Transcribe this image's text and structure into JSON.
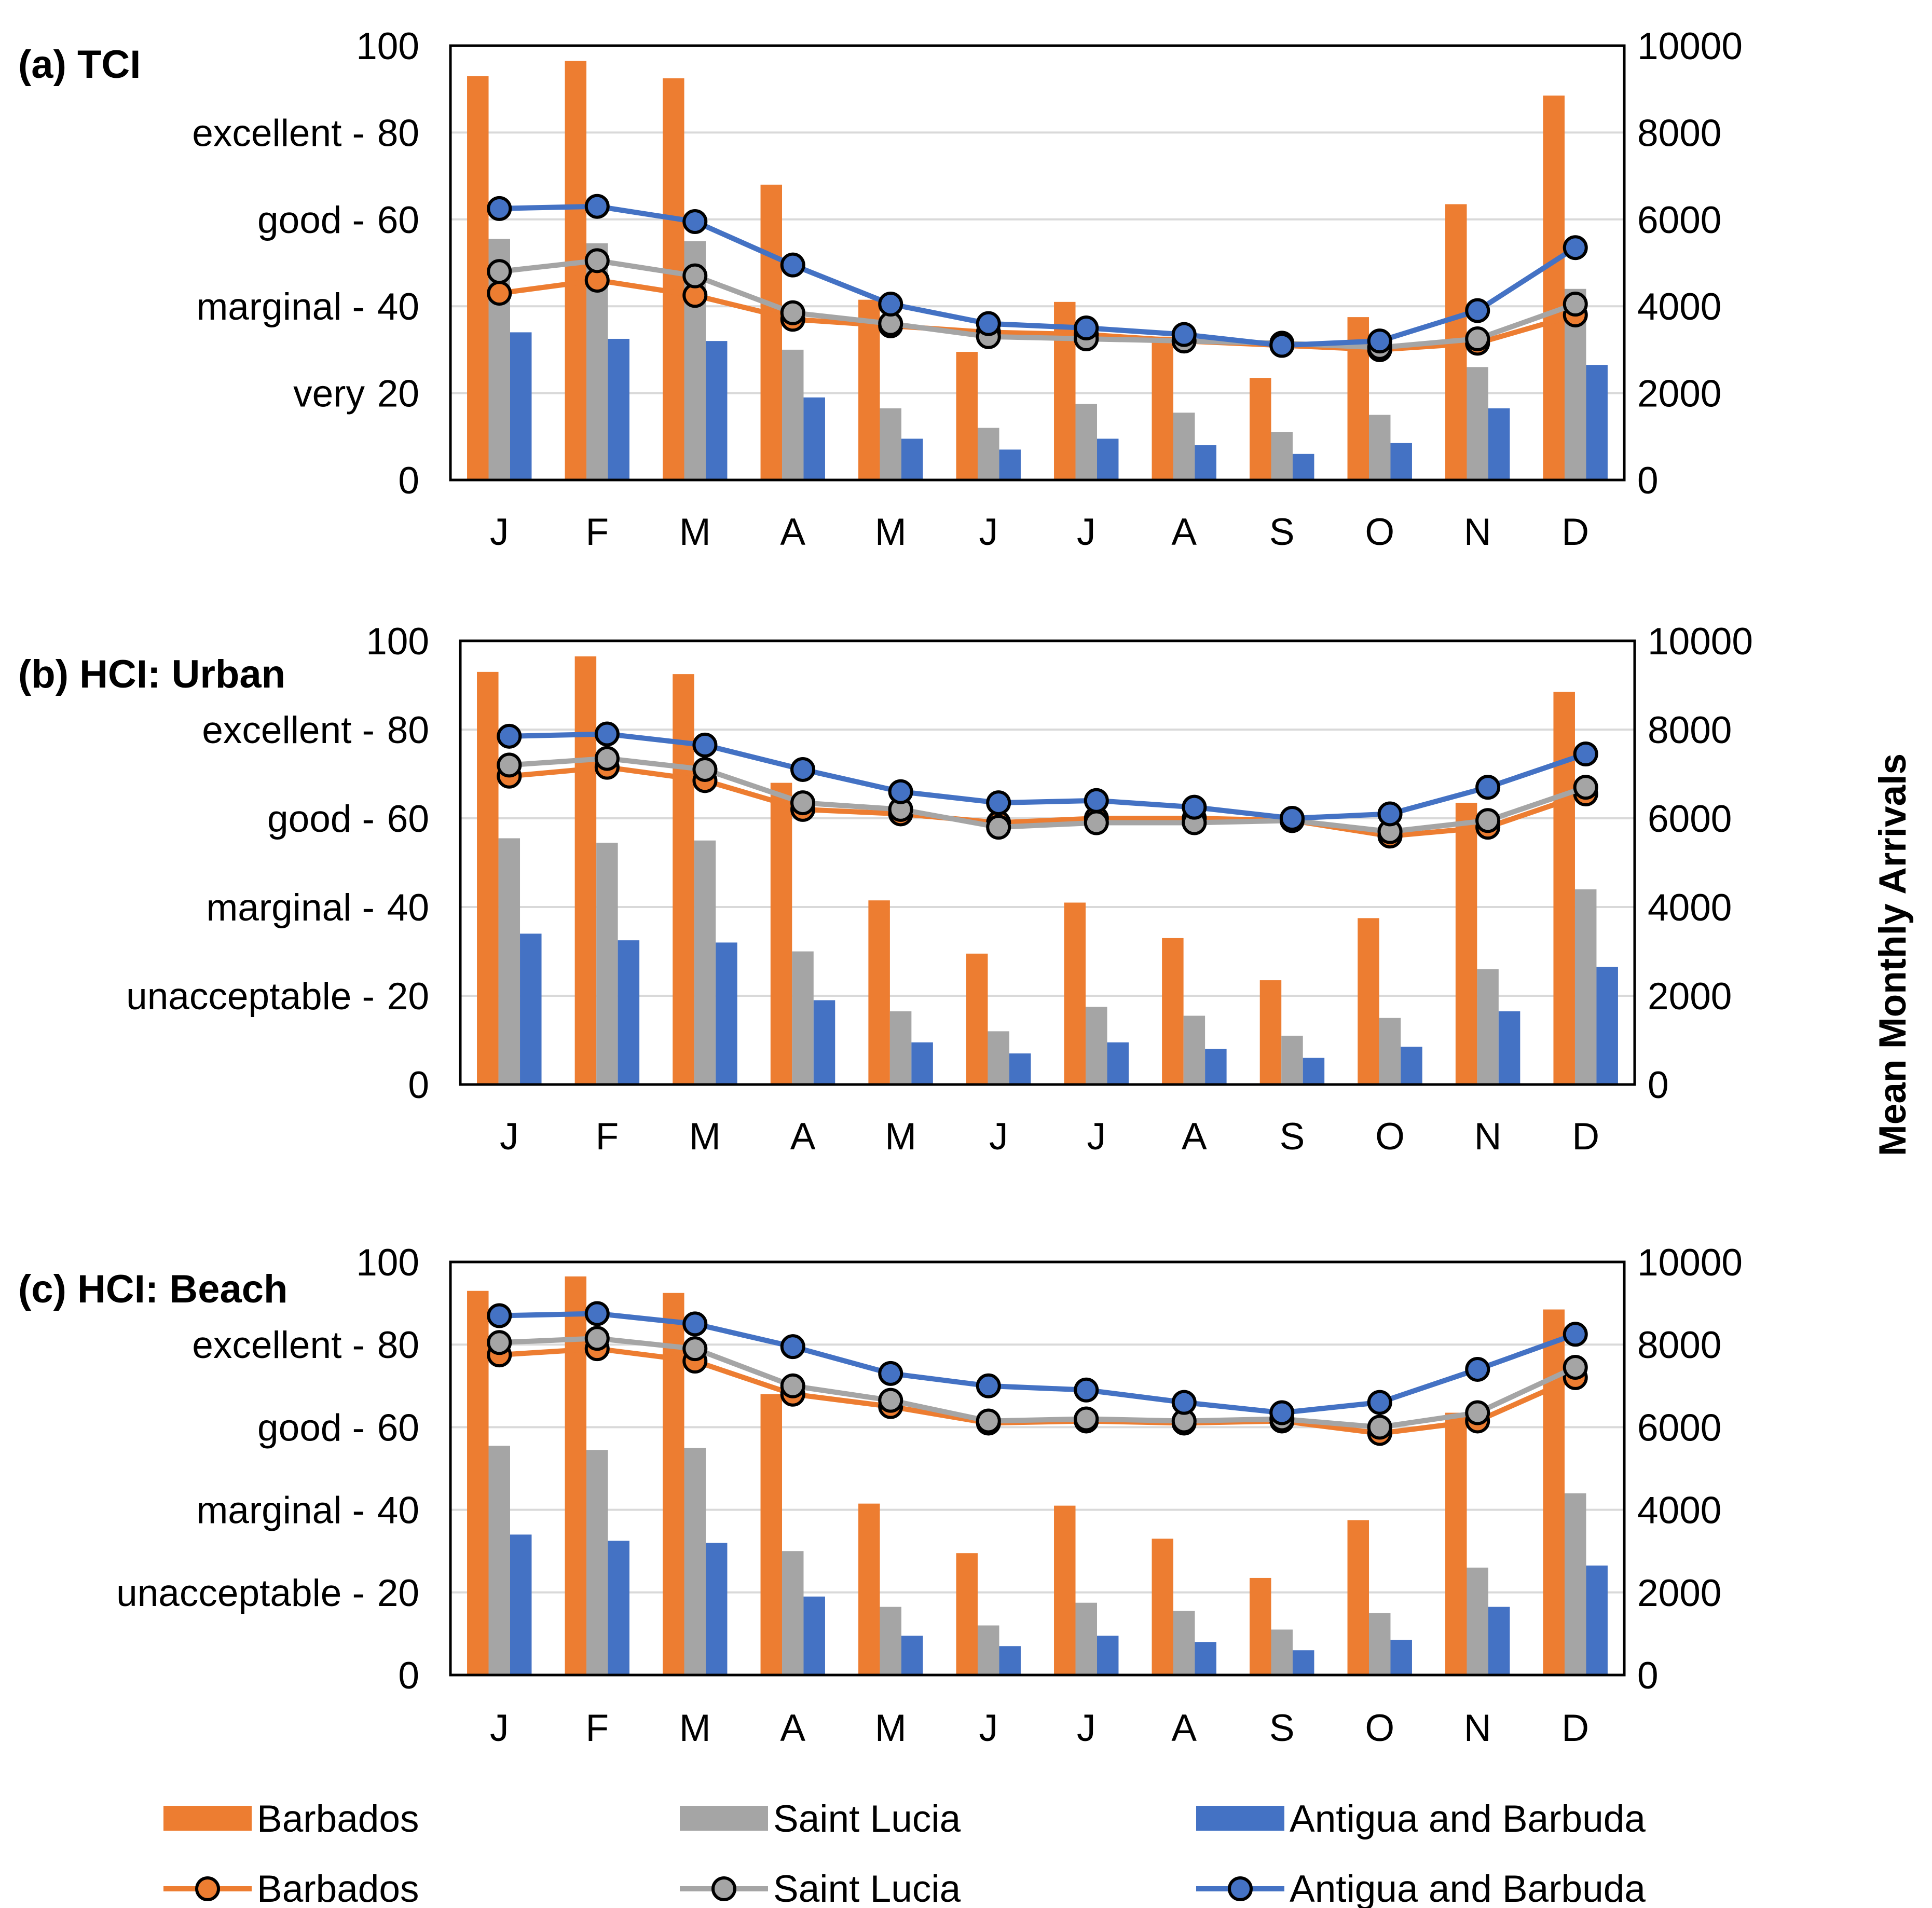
{
  "chart_data": [
    {
      "type": "bar+line",
      "title": "(a) TCI",
      "categories": [
        "J",
        "F",
        "M",
        "A",
        "M",
        "J",
        "J",
        "A",
        "S",
        "O",
        "N",
        "D"
      ],
      "y_left": {
        "min": 0,
        "max": 100,
        "ticks": [
          "0",
          "20",
          "40",
          "60",
          "80",
          "100"
        ]
      },
      "y_right": {
        "min": 0,
        "max": 10000,
        "ticks": [
          "0",
          "2000",
          "4000",
          "6000",
          "8000",
          "10000"
        ]
      },
      "category_labels": [
        {
          "text": "excellent -",
          "value": 80
        },
        {
          "text": "good -",
          "value": 60
        },
        {
          "text": "marginal -",
          "value": 40
        },
        {
          "text": "very",
          "value": 20
        }
      ],
      "bar_series": [
        {
          "name": "Barbados",
          "values": [
            9300,
            9650,
            9250,
            6800,
            4150,
            2950,
            4100,
            3300,
            2350,
            3750,
            6350,
            8850
          ]
        },
        {
          "name": "Saint Lucia",
          "values": [
            5550,
            5450,
            5500,
            3000,
            1650,
            1200,
            1750,
            1550,
            1100,
            1500,
            2600,
            4400
          ]
        },
        {
          "name": "Antigua and Barbuda",
          "values": [
            3400,
            3250,
            3200,
            1900,
            950,
            700,
            950,
            800,
            600,
            850,
            1650,
            2650
          ]
        }
      ],
      "line_series": [
        {
          "name": "Barbados",
          "values": [
            43,
            46,
            42.5,
            37,
            35.5,
            34,
            33.5,
            32,
            31,
            30,
            31.5,
            38
          ]
        },
        {
          "name": "Saint Lucia",
          "values": [
            48,
            50.5,
            47,
            38.5,
            36,
            33,
            32.5,
            32,
            31.5,
            30.5,
            32.5,
            40.5
          ]
        },
        {
          "name": "Antigua and Barbuda",
          "values": [
            62.5,
            63,
            59.5,
            49.5,
            40.5,
            36,
            35,
            33.5,
            31,
            32,
            39,
            53.5
          ]
        }
      ]
    },
    {
      "type": "bar+line",
      "title": "(b) HCI: Urban",
      "categories": [
        "J",
        "F",
        "M",
        "A",
        "M",
        "J",
        "J",
        "A",
        "S",
        "O",
        "N",
        "D"
      ],
      "y_left": {
        "min": 0,
        "max": 100,
        "ticks": [
          "0",
          "20",
          "40",
          "60",
          "80",
          "100"
        ]
      },
      "y_right": {
        "min": 0,
        "max": 10000,
        "ticks": [
          "0",
          "2000",
          "4000",
          "6000",
          "8000",
          "10000"
        ]
      },
      "category_labels": [
        {
          "text": "excellent -",
          "value": 80
        },
        {
          "text": "good -",
          "value": 60
        },
        {
          "text": "marginal -",
          "value": 40
        },
        {
          "text": "unacceptable -",
          "value": 20
        }
      ],
      "bar_series": [
        {
          "name": "Barbados",
          "values": [
            9300,
            9650,
            9250,
            6800,
            4150,
            2950,
            4100,
            3300,
            2350,
            3750,
            6350,
            8850
          ]
        },
        {
          "name": "Saint Lucia",
          "values": [
            5550,
            5450,
            5500,
            3000,
            1650,
            1200,
            1750,
            1550,
            1100,
            1500,
            2600,
            4400
          ]
        },
        {
          "name": "Antigua and Barbuda",
          "values": [
            3400,
            3250,
            3200,
            1900,
            950,
            700,
            950,
            800,
            600,
            850,
            1650,
            2650
          ]
        }
      ],
      "line_series": [
        {
          "name": "Barbados",
          "values": [
            69.5,
            71.5,
            68.5,
            62,
            61,
            59,
            60,
            60,
            59.5,
            56,
            58,
            65.5
          ]
        },
        {
          "name": "Saint Lucia",
          "values": [
            72,
            73.5,
            71,
            63.5,
            62,
            58,
            59,
            59,
            59.5,
            57,
            59.5,
            67
          ]
        },
        {
          "name": "Antigua and Barbuda",
          "values": [
            78.5,
            79,
            76.5,
            71,
            66,
            63.5,
            64,
            62.5,
            60,
            61,
            67,
            74.5
          ]
        }
      ]
    },
    {
      "type": "bar+line",
      "title": "(c) HCI: Beach",
      "categories": [
        "J",
        "F",
        "M",
        "A",
        "M",
        "J",
        "J",
        "A",
        "S",
        "O",
        "N",
        "D"
      ],
      "y_left": {
        "min": 0,
        "max": 100,
        "ticks": [
          "0",
          "20",
          "40",
          "60",
          "80",
          "100"
        ]
      },
      "y_right": {
        "min": 0,
        "max": 10000,
        "ticks": [
          "0",
          "2000",
          "4000",
          "6000",
          "8000",
          "10000"
        ]
      },
      "category_labels": [
        {
          "text": "excellent -",
          "value": 80
        },
        {
          "text": "good -",
          "value": 60
        },
        {
          "text": "marginal -",
          "value": 40
        },
        {
          "text": "unacceptable -",
          "value": 20
        }
      ],
      "bar_series": [
        {
          "name": "Barbados",
          "values": [
            9300,
            9650,
            9250,
            6800,
            4150,
            2950,
            4100,
            3300,
            2350,
            3750,
            6350,
            8850
          ]
        },
        {
          "name": "Saint Lucia",
          "values": [
            5550,
            5450,
            5500,
            3000,
            1650,
            1200,
            1750,
            1550,
            1100,
            1500,
            2600,
            4400
          ]
        },
        {
          "name": "Antigua and Barbuda",
          "values": [
            3400,
            3250,
            3200,
            1900,
            950,
            700,
            950,
            800,
            600,
            850,
            1650,
            2650
          ]
        }
      ],
      "line_series": [
        {
          "name": "Barbados",
          "values": [
            77.5,
            79,
            76,
            68,
            65,
            61,
            61.5,
            61,
            61.5,
            58.5,
            61.5,
            72
          ]
        },
        {
          "name": "Saint Lucia",
          "values": [
            80.5,
            81.5,
            79,
            70,
            66.5,
            61.5,
            62,
            61.5,
            62,
            60,
            63.5,
            74.5
          ]
        },
        {
          "name": "Antigua and Barbuda",
          "values": [
            87,
            87.5,
            85,
            79.5,
            73,
            70,
            69,
            66,
            63.5,
            66,
            74,
            82.5
          ]
        }
      ]
    }
  ],
  "right_axis_title": "Mean Monthly Arrivals",
  "colors": {
    "Barbados": "#ED7D31",
    "Saint Lucia": "#A5A5A5",
    "Antigua and Barbuda": "#4472C4",
    "gridline": "#D9D9D9",
    "frame": "#000000"
  },
  "legend": {
    "bars": [
      "Barbados",
      "Saint Lucia",
      "Antigua and Barbuda"
    ],
    "lines": [
      "Barbados",
      "Saint Lucia",
      "Antigua and Barbuda"
    ]
  }
}
